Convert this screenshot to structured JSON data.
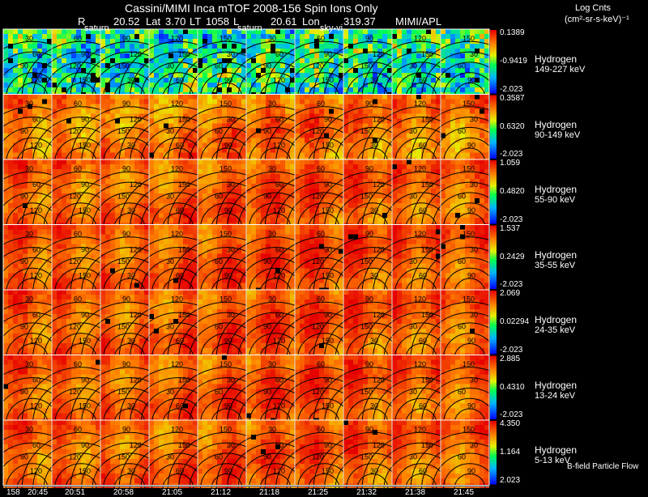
{
  "header": {
    "title": "Cassini/MIMI Inca mTOF  2008-156   Spin    Ions Only",
    "r_label": "R",
    "r_value": "20.52",
    "lat_label": "Lat",
    "lat_value": "3.70",
    "lt_label": "LT",
    "lt_value": "1058",
    "l_label": "L",
    "l_value": "20.61",
    "lon_label": "Lon",
    "lon_value": "319.37",
    "institution": "MIMI/APL",
    "units_line1": "Log Cnts",
    "units_line2": "(cm²-sr-s-keV)⁻¹",
    "overlay_labels": [
      "saturn",
      "saturn",
      "sky-vi"
    ]
  },
  "colors": {
    "background": "#000000",
    "text": "#ffffff",
    "contour": "#000000",
    "grid": "#ffffff",
    "scale_low": "#0000ff",
    "scale_mid": "#00ff00",
    "scale_high": "#ff0000"
  },
  "footer": {
    "flow_label": "B-field Particle Flow"
  },
  "chart_data": {
    "type": "heatmap",
    "x_prefix": "158",
    "time_ticks": [
      "20:45",
      "20:51",
      "20:58",
      "21:05",
      "21:12",
      "21:18",
      "21:25",
      "21:32",
      "21:38",
      "21:45"
    ],
    "contour_labels": [
      "30",
      "60",
      "90",
      "120",
      "150"
    ],
    "panels": [
      {
        "species": "Hydrogen",
        "energy": "149-227 keV",
        "cmax": "0.1389",
        "cmid": "-0.9419",
        "cmin": "-2.023",
        "level": 0.38,
        "noise": 0.22
      },
      {
        "species": "Hydrogen",
        "energy": "90-149 keV",
        "cmax": "0.3587",
        "cmid": "0.6320",
        "cmin": "-2.023",
        "level": 0.8,
        "noise": 0.07
      },
      {
        "species": "Hydrogen",
        "energy": "55-90 keV",
        "cmax": "1.059",
        "cmid": "0.4820",
        "cmin": "-2.023",
        "level": 0.84,
        "noise": 0.05
      },
      {
        "species": "Hydrogen",
        "energy": "35-55 keV",
        "cmax": "1.537",
        "cmid": "0.2429",
        "cmin": "-2.023",
        "level": 0.86,
        "noise": 0.05
      },
      {
        "species": "Hydrogen",
        "energy": "24-35 keV",
        "cmax": "2.069",
        "cmid": "0.02294",
        "cmin": "-2.023",
        "level": 0.85,
        "noise": 0.05
      },
      {
        "species": "Hydrogen",
        "energy": "13-24 keV",
        "cmax": "2.885",
        "cmid": "0.4310",
        "cmin": "-2.023",
        "level": 0.85,
        "noise": 0.05
      },
      {
        "species": "Hydrogen",
        "energy": "5-13 keV",
        "cmax": "4.350",
        "cmid": "1.164",
        "cmin": "2.023",
        "level": 0.84,
        "noise": 0.05
      }
    ]
  }
}
